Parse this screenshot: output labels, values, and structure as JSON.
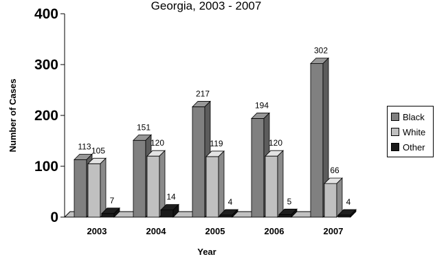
{
  "chart_data": {
    "type": "bar",
    "title": "Georgia, 2003 - 2007",
    "xlabel": "Year",
    "ylabel": "Number of Cases",
    "categories": [
      "2003",
      "2004",
      "2005",
      "2006",
      "2007"
    ],
    "ylim": [
      0,
      400
    ],
    "yticks": [
      "0",
      "100",
      "200",
      "300",
      "400"
    ],
    "series": [
      {
        "name": "Black",
        "values": [
          113,
          151,
          217,
          194,
          302
        ],
        "color": "#808080"
      },
      {
        "name": "White",
        "values": [
          105,
          120,
          119,
          120,
          66
        ],
        "color": "#c0c0c0"
      },
      {
        "name": "Other",
        "values": [
          7,
          14,
          4,
          5,
          4
        ],
        "color": "#1a1a1a"
      }
    ],
    "data_labels": [
      [
        "113",
        "151",
        "217",
        "194",
        "302"
      ],
      [
        "105",
        "120",
        "119",
        "120",
        "66"
      ],
      [
        "7",
        "14",
        "4",
        "5",
        "4"
      ]
    ],
    "grid": false,
    "legend_position": "right",
    "style": "3d-clustered-column"
  }
}
